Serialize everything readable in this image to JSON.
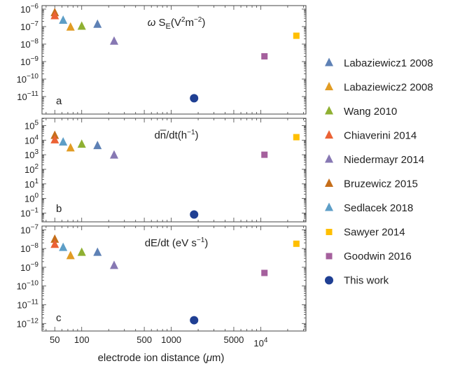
{
  "figure": {
    "xlabel_text": "electrode ion distance (",
    "xlabel_mu": "μ",
    "xlabel_unit": "m)"
  },
  "legend": [
    {
      "name": "Labaziewicz1 2008",
      "color": "#5e81b5",
      "marker": "triangle"
    },
    {
      "name": "Labaziewicz2 2008",
      "color": "#e19c24",
      "marker": "triangle"
    },
    {
      "name": "Wang 2010",
      "color": "#8fb032",
      "marker": "triangle"
    },
    {
      "name": "Chiaverini 2014",
      "color": "#eb6235",
      "marker": "triangle"
    },
    {
      "name": "Niedermayr 2014",
      "color": "#8778b3",
      "marker": "triangle"
    },
    {
      "name": "Bruzewicz 2015",
      "color": "#c56e1a",
      "marker": "triangle"
    },
    {
      "name": "Sedlacek 2018",
      "color": "#5d9ec7",
      "marker": "triangle"
    },
    {
      "name": "Sawyer 2014",
      "color": "#ffbf00",
      "marker": "square"
    },
    {
      "name": "Goodwin 2016",
      "color": "#a5609d",
      "marker": "square"
    },
    {
      "name": "This work",
      "color": "#1f3f93",
      "marker": "circle"
    }
  ],
  "chart_data": [
    {
      "type": "scatter",
      "panel_label": "a",
      "title_prefix": "ω S",
      "title_sub": "E",
      "title_unit_1": "(V",
      "title_sup": "2",
      "title_unit_2": "m",
      "title_sup2": "−2",
      "title_unit_3": ")",
      "xscale": "log",
      "yscale": "log",
      "xlim": [
        36,
        32000
      ],
      "ylim_exp": [
        -12,
        -5.8
      ],
      "xticks": [
        "50",
        "100",
        "500",
        "1000",
        "5000",
        "10^4"
      ],
      "yticks": [
        "10^-6",
        "10^-7",
        "10^-8",
        "10^-9",
        "10^-10",
        "10^-11"
      ],
      "points": [
        {
          "series": "Bruzewicz 2015",
          "x": 50,
          "y": 6e-07
        },
        {
          "series": "Chiaverini 2014",
          "x": 50,
          "y": 4e-07
        },
        {
          "series": "Sedlacek 2018",
          "x": 62,
          "y": 2.2e-07
        },
        {
          "series": "Labaziewicz2 2008",
          "x": 75,
          "y": 9e-08
        },
        {
          "series": "Wang 2010",
          "x": 100,
          "y": 1e-07
        },
        {
          "series": "Labaziewicz1 2008",
          "x": 150,
          "y": 1.3e-07
        },
        {
          "series": "Niedermayr 2014",
          "x": 230,
          "y": 1.4e-08
        },
        {
          "series": "This work",
          "x": 1800,
          "y": 8e-12
        },
        {
          "series": "Goodwin 2016",
          "x": 11000,
          "y": 2e-09
        },
        {
          "series": "Sawyer 2014",
          "x": 25000,
          "y": 3e-08
        }
      ]
    },
    {
      "type": "scatter",
      "panel_label": "b",
      "title_prefix": "dn̅/dt(h",
      "title_sup": "−1",
      "title_unit_3": ")",
      "xscale": "log",
      "yscale": "log",
      "xlim": [
        36,
        32000
      ],
      "ylim_exp": [
        -1.6,
        5.5
      ],
      "xticks": [
        "50",
        "100",
        "500",
        "1000",
        "5000",
        "10^4"
      ],
      "yticks": [
        "10^5",
        "10^4",
        "10^3",
        "10^2",
        "10^1",
        "10^0",
        "10^-1"
      ],
      "points": [
        {
          "series": "Bruzewicz 2015",
          "x": 50,
          "y": 20000
        },
        {
          "series": "Chiaverini 2014",
          "x": 50,
          "y": 10000
        },
        {
          "series": "Sedlacek 2018",
          "x": 62,
          "y": 7000
        },
        {
          "series": "Labaziewicz2 2008",
          "x": 75,
          "y": 2800
        },
        {
          "series": "Wang 2010",
          "x": 100,
          "y": 5000
        },
        {
          "series": "Labaziewicz1 2008",
          "x": 150,
          "y": 4000
        },
        {
          "series": "Niedermayr 2014",
          "x": 230,
          "y": 900
        },
        {
          "series": "This work",
          "x": 1800,
          "y": 0.08
        },
        {
          "series": "Goodwin 2016",
          "x": 11000,
          "y": 1000
        },
        {
          "series": "Sawyer 2014",
          "x": 25000,
          "y": 16000
        }
      ]
    },
    {
      "type": "scatter",
      "panel_label": "c",
      "title_prefix": "dE/dt (eV s",
      "title_sup": "−1",
      "title_unit_3": ")",
      "xscale": "log",
      "yscale": "log",
      "xlim": [
        36,
        32000
      ],
      "ylim_exp": [
        -12.4,
        -6.8
      ],
      "xticks": [
        "50",
        "100",
        "500",
        "1000",
        "5000",
        "10^4"
      ],
      "yticks": [
        "10^-7",
        "10^-8",
        "10^-9",
        "10^-10",
        "10^-11",
        "10^-12"
      ],
      "points": [
        {
          "series": "Bruzewicz 2015",
          "x": 50,
          "y": 3e-08
        },
        {
          "series": "Chiaverini 2014",
          "x": 50,
          "y": 1.6e-08
        },
        {
          "series": "Sedlacek 2018",
          "x": 62,
          "y": 1.1e-08
        },
        {
          "series": "Labaziewicz2 2008",
          "x": 75,
          "y": 4e-09
        },
        {
          "series": "Wang 2010",
          "x": 100,
          "y": 6e-09
        },
        {
          "series": "Labaziewicz1 2008",
          "x": 150,
          "y": 6e-09
        },
        {
          "series": "Niedermayr 2014",
          "x": 230,
          "y": 1.2e-09
        },
        {
          "series": "This work",
          "x": 1800,
          "y": 1.5e-12
        },
        {
          "series": "Goodwin 2016",
          "x": 11000,
          "y": 5e-10
        },
        {
          "series": "Sawyer 2014",
          "x": 25000,
          "y": 1.8e-08
        }
      ]
    }
  ]
}
